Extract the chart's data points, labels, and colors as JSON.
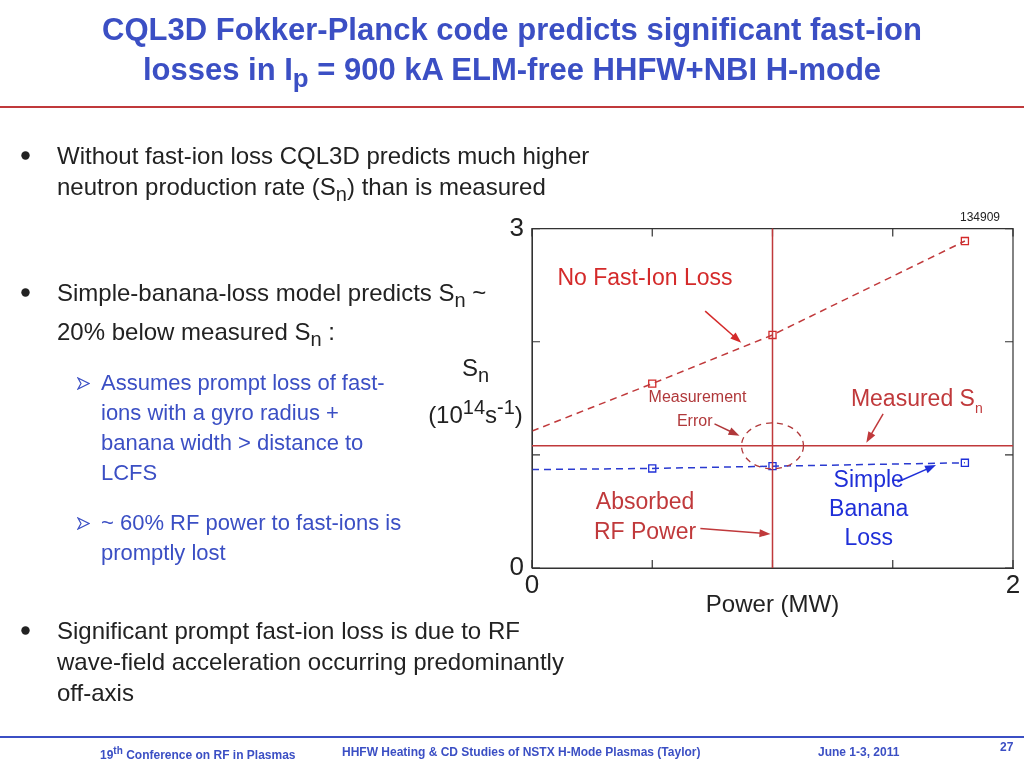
{
  "chart_data": {
    "type": "scatter",
    "title": "CQL3D Fokker-Planck code predicts significant fast-ion losses in I$_{p}$ = 900 kA ELM-free HHFW+NBI H-mode",
    "xlabel": "Power (MW)",
    "ylabel": "S$_{n}$ (10$^{14}$s$^{-1}$)",
    "xlim": [
      0,
      2
    ],
    "xticks": [
      0,
      {
        "value": 0.5,
        "label": null
      },
      {
        "value": 1,
        "label": null
      },
      {
        "value": 1.5,
        "label": null
      },
      2
    ],
    "ylim": [
      0,
      3
    ],
    "yticks": [
      0,
      {
        "value": 1,
        "label": null
      },
      {
        "value": 2,
        "label": null
      },
      3
    ],
    "grid": false,
    "legend": false,
    "series": [
      {
        "type": "line",
        "color": "#c0393b",
        "x": [
          0,
          0.5,
          1,
          1.8
        ],
        "values": [
          1.21,
          1.63,
          2.06,
          2.89
        ],
        "line_style": "dashed",
        "marker": "none"
      },
      {
        "type": "line",
        "color": "#2a3ad0",
        "x": [
          0,
          0.5,
          1,
          1.8
        ],
        "values": [
          0.87,
          0.88,
          0.9,
          0.93
        ],
        "line_style": "dashed",
        "marker": "none"
      },
      {
        "type": "scatter",
        "color": "#d42a2a",
        "x": [
          0.5,
          1,
          1.8
        ],
        "values": [
          1.63,
          2.06,
          2.89
        ],
        "marker": "square"
      },
      {
        "type": "scatter",
        "color": "#1f2fd8",
        "x": [
          0.5,
          1,
          1.8
        ],
        "values": [
          0.88,
          0.9,
          0.93
        ],
        "marker": "square"
      }
    ],
    "ref_lines": [
      {
        "axis": "y",
        "value": 1.08,
        "label": "Measured S$_{n}$",
        "color": "#c0393b"
      },
      {
        "axis": "x",
        "value": 1,
        "label": "Absorbed RF Power",
        "color": "#c0393b"
      }
    ],
    "annotations": [
      "134909",
      "Without fast-ion loss CQL3D predicts much higher neutron production rate (S$_{n}$) than is measured",
      "Simple-banana-loss model predicts S$_{n}$ ~ 20% below measured S$_{n}$ :",
      "Assumes prompt loss of fast-ions with a gyro radius + banana width > distance to LCFS",
      "~ 60% RF power to fast-ions is promptly lost",
      "Significant prompt fast-ion loss is due to RF wave-field acceleration occurring predominantly off-axis",
      "19$^{th}$ Conference on RF in Plasmas",
      "HHFW Heating & CD Studies of NSTX H-Mode Plasmas (Taylor)",
      "June 1-3, 2011",
      "27",
      {
        "text": "Measurement Error",
        "x": 1,
        "y": 1.08
      },
      {
        "text": "No Fast-Ion Loss",
        "x": 0.87,
        "y": 1.99
      },
      {
        "text": "Simple Banana Loss",
        "x": 1.68,
        "y": 0.91
      }
    ]
  }
}
